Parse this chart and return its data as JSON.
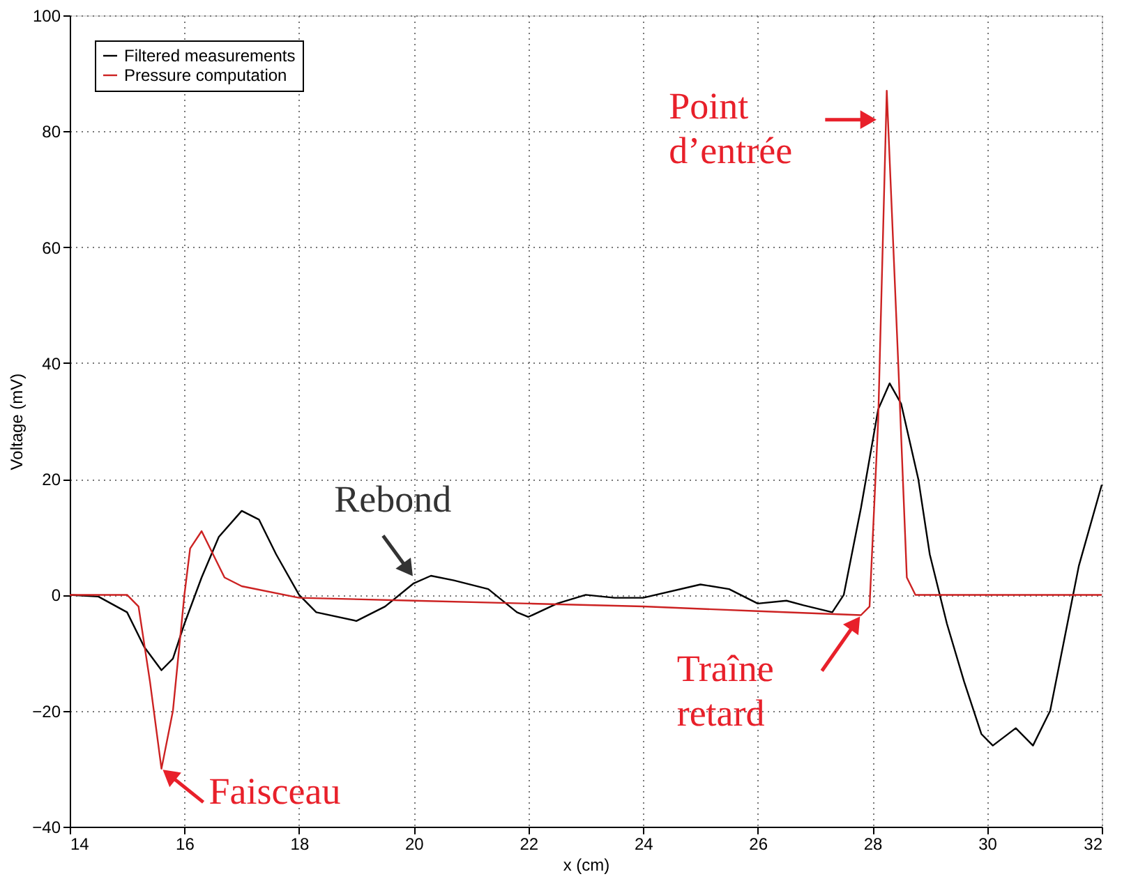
{
  "chart_data": {
    "type": "line",
    "xlabel": "x (cm)",
    "ylabel": "Voltage (mV)",
    "xlim": [
      14,
      32
    ],
    "xticks": [
      14,
      16,
      18,
      20,
      22,
      24,
      26,
      28,
      30,
      32
    ],
    "ylim": [
      -40,
      100
    ],
    "yticks": [
      -40,
      -20,
      0,
      20,
      40,
      60,
      80,
      100
    ],
    "grid": true,
    "legend": "top left",
    "line_style": "solid",
    "marker": "none",
    "series": [
      {
        "name": "Filtered measurements",
        "color": "#000000",
        "x": [
          14,
          14.5,
          15,
          15.3,
          15.6,
          15.8,
          16,
          16.3,
          16.6,
          17,
          17.3,
          17.6,
          18,
          18.3,
          19,
          19.5,
          20,
          20.3,
          20.7,
          21.3,
          21.8,
          22,
          22.5,
          23,
          23.5,
          24,
          25,
          25.5,
          26,
          26.5,
          26.8,
          27.3,
          27.5,
          27.8,
          28.1,
          28.3,
          28.5,
          28.8,
          29,
          29.3,
          29.6,
          29.9,
          30.1,
          30.5,
          30.8,
          31.1,
          31.4,
          31.6,
          32
        ],
        "values": [
          0,
          -0.3,
          -3,
          -9,
          -13,
          -11,
          -5,
          3,
          10,
          14.5,
          13,
          7,
          0,
          -3,
          -4.5,
          -2,
          2,
          3.3,
          2.5,
          1,
          -3,
          -3.8,
          -1.5,
          0,
          -0.5,
          -0.5,
          1.8,
          1,
          -1.5,
          -1,
          -1.8,
          -3,
          0,
          15,
          32,
          36.5,
          33,
          20,
          7,
          -5,
          -15,
          -24,
          -26,
          -23,
          -26,
          -20,
          -5,
          5,
          19
        ]
      },
      {
        "name": "Pressure computation",
        "color": "#cc2222",
        "x": [
          14,
          15,
          15.2,
          15.4,
          15.6,
          15.8,
          16,
          16.1,
          16.3,
          16.5,
          16.7,
          17,
          18,
          20,
          22,
          24,
          26,
          27.8,
          27.95,
          28.1,
          28.25,
          28.45,
          28.6,
          28.75,
          32
        ],
        "values": [
          0,
          0,
          -2,
          -15,
          -30,
          -20,
          0,
          8,
          11,
          7,
          3,
          1.5,
          -0.5,
          -1,
          -1.5,
          -2,
          -2.8,
          -3.5,
          -2,
          30,
          87,
          40,
          3,
          0,
          0
        ]
      }
    ],
    "annotations": [
      {
        "text": "Rebond",
        "x": 20,
        "y": 3
      },
      {
        "text": "Point\nd’entrée",
        "x": 28.1,
        "y": 82
      },
      {
        "text": "Traîne\nretard",
        "x": 27.8,
        "y": -3.5
      },
      {
        "text": "Faisceau",
        "x": 15.6,
        "y": -30
      }
    ]
  }
}
